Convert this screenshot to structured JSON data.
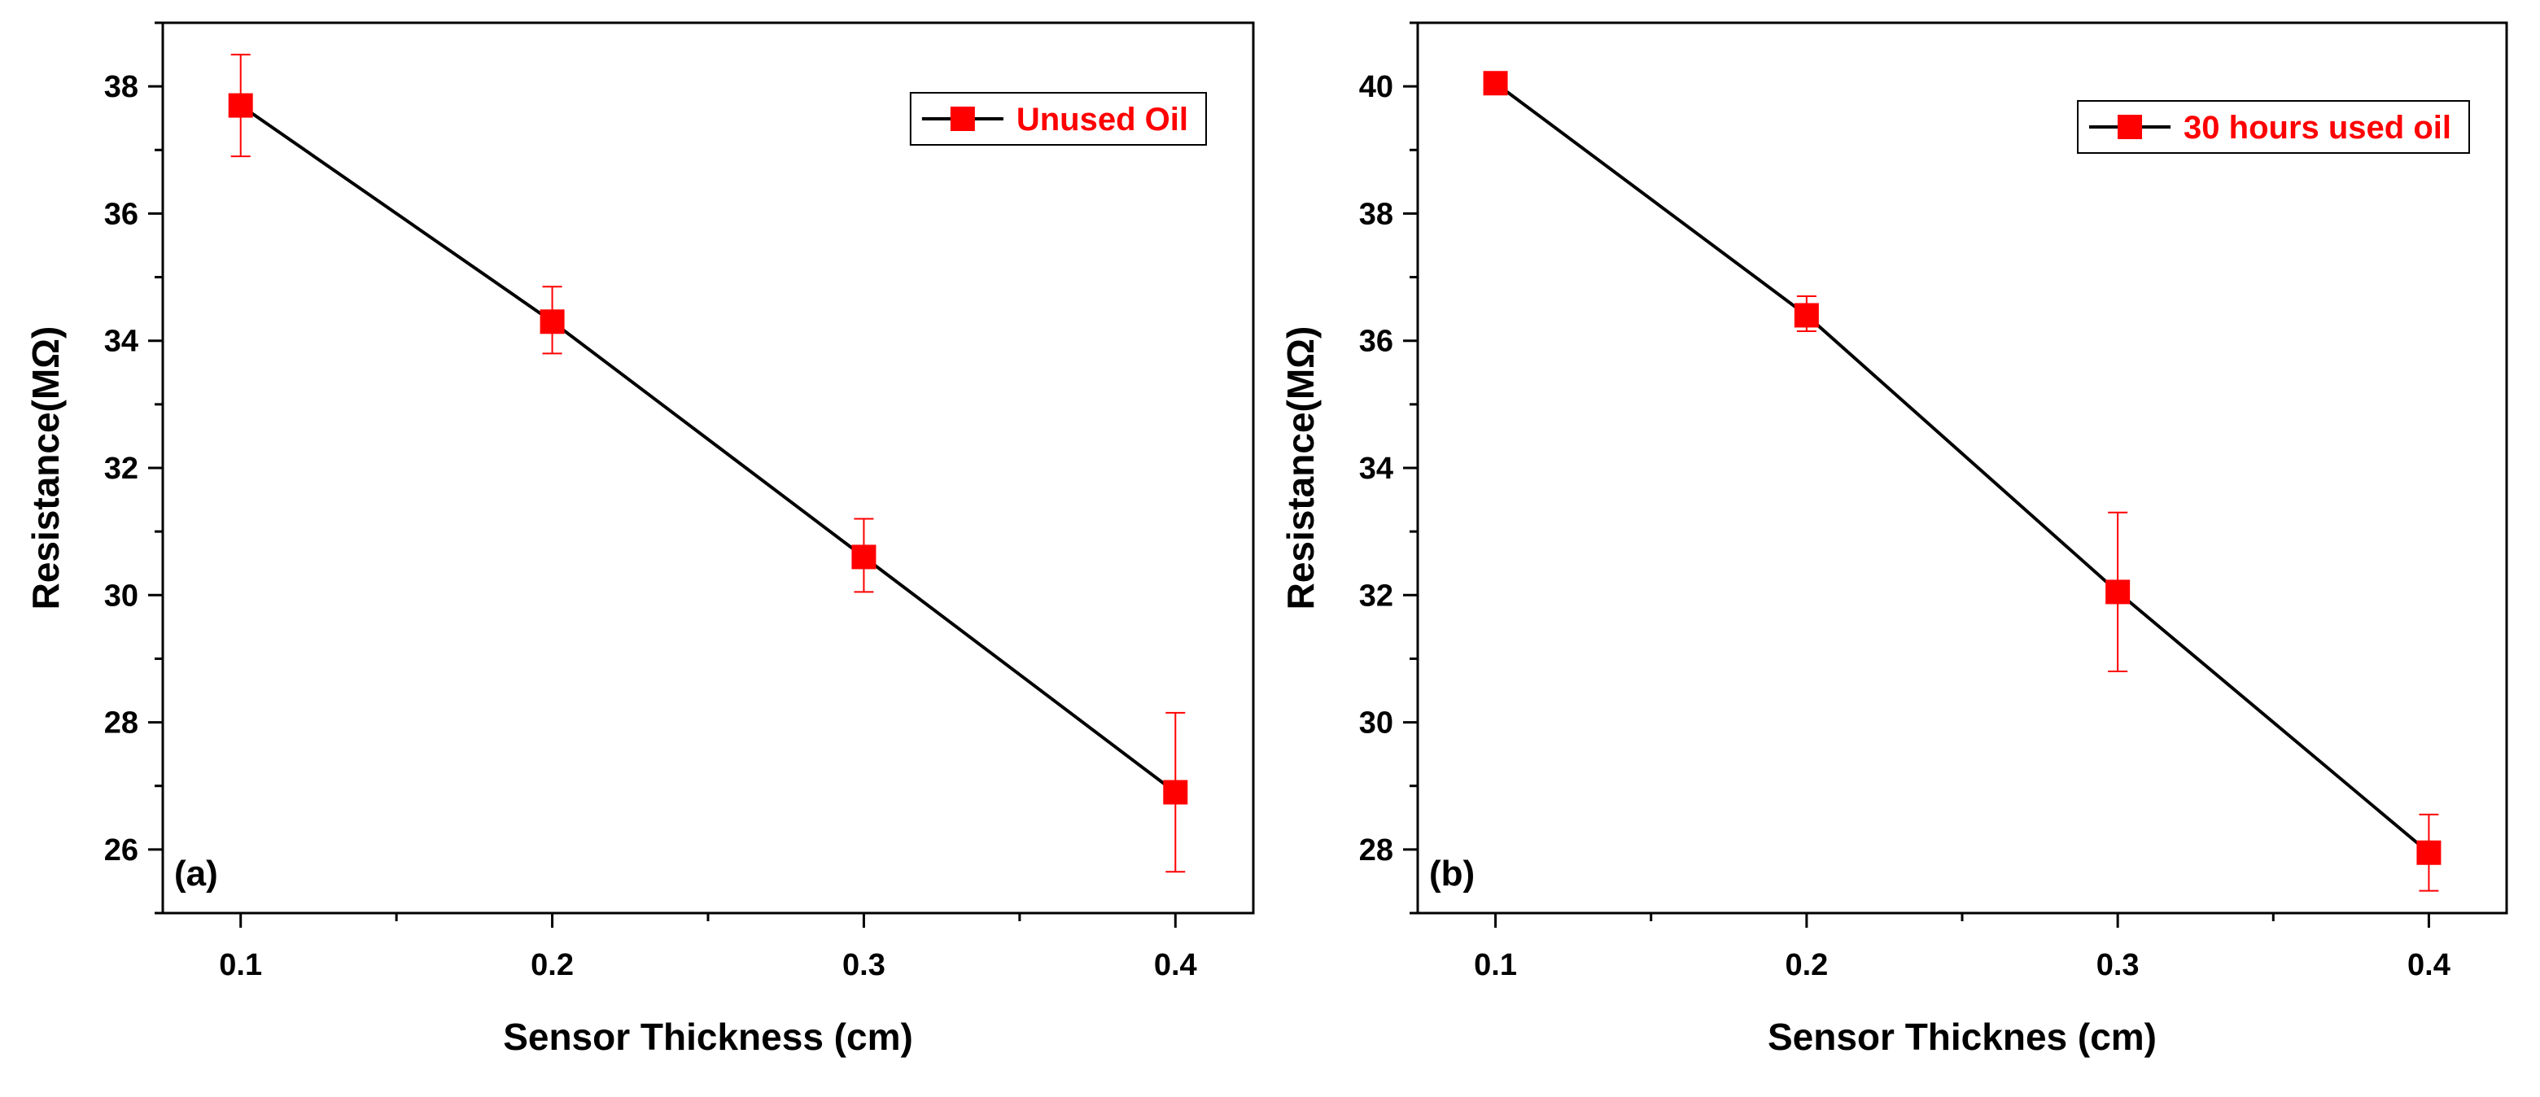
{
  "chart_data": [
    {
      "type": "line",
      "panel_label": "(a)",
      "xlabel": "Sensor Thickness (cm)",
      "ylabel": "Resistance(MΩ)",
      "xlim": [
        0.075,
        0.425
      ],
      "ylim": [
        25.0,
        39.0
      ],
      "xticks": [
        0.1,
        0.2,
        0.3,
        0.4
      ],
      "xtick_labels": [
        "0.1",
        "0.2",
        "0.3",
        "0.4"
      ],
      "yticks": [
        26,
        28,
        30,
        32,
        34,
        36,
        38
      ],
      "ytick_labels": [
        "26",
        "28",
        "30",
        "32",
        "34",
        "36",
        "38"
      ],
      "legend_position": "top-right",
      "series": [
        {
          "name": "Unused Oil",
          "x": [
            0.1,
            0.2,
            0.3,
            0.4
          ],
          "y": [
            37.7,
            34.3,
            30.6,
            26.9
          ],
          "yerr_low": [
            36.9,
            33.8,
            30.05,
            25.65
          ],
          "yerr_high": [
            38.5,
            34.85,
            31.2,
            28.15
          ],
          "line_color": "#000000",
          "marker_color": "#ff0000",
          "legend_text_color": "#ff0000"
        }
      ]
    },
    {
      "type": "line",
      "panel_label": "(b)",
      "xlabel": "Sensor Thicknes (cm)",
      "ylabel": "Resistance(MΩ)",
      "xlim": [
        0.075,
        0.425
      ],
      "ylim": [
        27.0,
        41.0
      ],
      "xticks": [
        0.1,
        0.2,
        0.3,
        0.4
      ],
      "xtick_labels": [
        "0.1",
        "0.2",
        "0.3",
        "0.4"
      ],
      "yticks": [
        28,
        30,
        32,
        34,
        36,
        38,
        40
      ],
      "ytick_labels": [
        "28",
        "30",
        "32",
        "34",
        "36",
        "38",
        "40"
      ],
      "legend_position": "top-right",
      "series": [
        {
          "name": "30 hours used oil",
          "x": [
            0.1,
            0.2,
            0.3,
            0.4
          ],
          "y": [
            40.05,
            36.4,
            32.05,
            27.95
          ],
          "yerr_low": [
            40.05,
            36.15,
            30.8,
            27.35
          ],
          "yerr_high": [
            40.05,
            36.7,
            33.3,
            28.55
          ],
          "line_color": "#000000",
          "marker_color": "#ff0000",
          "legend_text_color": "#ff0000"
        }
      ]
    }
  ]
}
